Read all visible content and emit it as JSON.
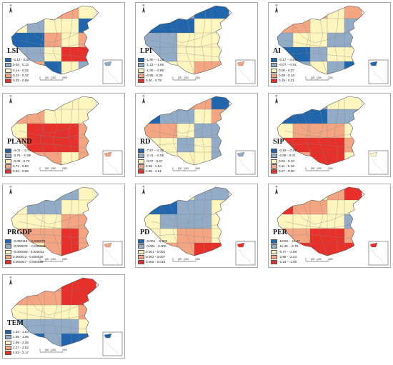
{
  "panels": [
    {
      "label": "LSI",
      "legend": [
        "-0.12 - 0.02",
        "0.03 - 0.13",
        "0.14 - 0.22",
        "0.23 - 0.32",
        "0.33 - 0.69"
      ],
      "colors": [
        "#2166ac",
        "#92abc6",
        "#fff6bf",
        "#f4a582",
        "#e8302a"
      ],
      "regions": [
        4,
        4,
        3,
        3,
        2,
        2,
        1,
        2,
        2,
        0,
        0,
        0,
        3,
        2,
        3,
        1,
        1,
        2,
        4,
        4,
        3,
        3,
        0,
        2,
        1
      ]
    },
    {
      "label": "LPI",
      "legend": [
        "-1.90 - -1.24",
        "-1.23 - -1.06",
        "-1.05 - -0.86",
        "-0.85 - 0.39",
        "0.40 - 2.78"
      ],
      "colors": [
        "#2166ac",
        "#92abc6",
        "#fff6bf",
        "#f4a582",
        "#e8302a"
      ],
      "regions": [
        4,
        3,
        1,
        0,
        0,
        0,
        0,
        0,
        2,
        2,
        1,
        1,
        2,
        2,
        2,
        1,
        1,
        2,
        2,
        2,
        1,
        2,
        2,
        3,
        3
      ]
    },
    {
      "label": "AI",
      "legend": [
        "-0.17 - -0.08",
        "-0.07 - -0.01",
        "0.00 - 0.07",
        "0.08 - 0.18",
        "0.19 - 0.31"
      ],
      "colors": [
        "#2166ac",
        "#92abc6",
        "#fff6bf",
        "#f4a582",
        "#e8302a"
      ],
      "regions": [
        4,
        3,
        3,
        2,
        3,
        3,
        3,
        2,
        2,
        1,
        1,
        2,
        2,
        1,
        1,
        0,
        0,
        1,
        2,
        2,
        1,
        1,
        2,
        1,
        0
      ]
    },
    {
      "label": "PLAND",
      "legend": [
        "-4.01 - -3.77",
        "-3.76 - -0.09",
        "-0.08 - 0.70",
        "0.71 - 0.83",
        "0.84 - 0.96"
      ],
      "colors": [
        "#2166ac",
        "#92abc6",
        "#fff6bf",
        "#f4a582",
        "#e8302a"
      ],
      "regions": [
        2,
        2,
        2,
        2,
        2,
        3,
        3,
        2,
        2,
        2,
        2,
        4,
        4,
        4,
        3,
        3,
        4,
        4,
        4,
        3,
        3,
        3,
        3,
        2,
        3
      ]
    },
    {
      "label": "RD",
      "legend": [
        "-7.67 - -2.42",
        "-2.41 - -0.08",
        "-0.07 - 0.67",
        "0.68 - 1.54",
        "1.55 - 4.61"
      ],
      "colors": [
        "#2166ac",
        "#92abc6",
        "#fff6bf",
        "#f4a582",
        "#e8302a"
      ],
      "regions": [
        4,
        3,
        3,
        3,
        0,
        0,
        1,
        1,
        2,
        3,
        3,
        3,
        2,
        1,
        1,
        2,
        2,
        1,
        2,
        1,
        1,
        2,
        2,
        2,
        1
      ]
    },
    {
      "label": "SIP",
      "legend": [
        "-0.19 - -0.09",
        "-0.08 - 0.01",
        "0.02 - 0.10",
        "0.11 - 0.16",
        "0.17 - 0.30"
      ],
      "colors": [
        "#2166ac",
        "#92abc6",
        "#fff6bf",
        "#f4a582",
        "#e8302a"
      ],
      "regions": [
        1,
        1,
        1,
        2,
        2,
        0,
        0,
        0,
        1,
        1,
        2,
        3,
        3,
        3,
        2,
        4,
        4,
        4,
        4,
        3,
        3,
        3,
        4,
        4,
        2
      ]
    },
    {
      "label": "PRGDP",
      "legend": [
        "-0.000119 - -0.000079",
        "-0.000078 - -0.000009",
        "-0.000008 - 0.000012",
        "0.000013 - 0.000026",
        "0.000027 - 0.000039"
      ],
      "colors": [
        "#2166ac",
        "#92abc6",
        "#fff6bf",
        "#f4a582",
        "#e8302a"
      ],
      "regions": [
        0,
        0,
        1,
        1,
        2,
        2,
        1,
        1,
        2,
        2,
        2,
        2,
        2,
        3,
        3,
        3,
        3,
        3,
        4,
        3,
        3,
        2,
        3,
        4,
        3
      ]
    },
    {
      "label": "PD",
      "legend": [
        "-0.004 - -0.002",
        "-0.001 - 0.000",
        "0.001 - 0.002",
        "0.003 - 0.007",
        "0.008 - 0.016"
      ],
      "colors": [
        "#2166ac",
        "#92abc6",
        "#fff6bf",
        "#f4a582",
        "#e8302a"
      ],
      "regions": [
        4,
        3,
        2,
        1,
        1,
        0,
        0,
        1,
        1,
        2,
        2,
        1,
        1,
        1,
        2,
        2,
        2,
        3,
        3,
        2,
        3,
        3,
        3,
        4,
        4
      ]
    },
    {
      "label": "PER",
      "legend": [
        "-19.06 - -11.47",
        "-11.46 - -6.78",
        "-6.77 - -2.99",
        "-2.98 - -2.24",
        "-2.23 - -1.06"
      ],
      "colors": [
        "#2166ac",
        "#92abc6",
        "#fff6bf",
        "#f4a582",
        "#e8302a"
      ],
      "regions": [
        0,
        1,
        2,
        3,
        4,
        4,
        3,
        3,
        2,
        2,
        2,
        2,
        2,
        2,
        1,
        3,
        3,
        4,
        4,
        3,
        3,
        4,
        4,
        4,
        4
      ]
    },
    {
      "label": "TEM",
      "legend": [
        "1.34 - 1.64",
        "1.65 - 1.95",
        "1.96 - 2.26",
        "2.27 - 2.52",
        "2.53 - 3.17"
      ],
      "colors": [
        "#2166ac",
        "#92abc6",
        "#fff6bf",
        "#f4a582",
        "#e8302a"
      ],
      "regions": [
        3,
        3,
        3,
        4,
        4,
        3,
        3,
        3,
        4,
        4,
        2,
        2,
        2,
        2,
        3,
        1,
        1,
        1,
        1,
        2,
        0,
        0,
        1,
        0,
        0
      ]
    }
  ],
  "scalebar": [
    "0",
    "500",
    "1000",
    "2000"
  ],
  "north": "N"
}
